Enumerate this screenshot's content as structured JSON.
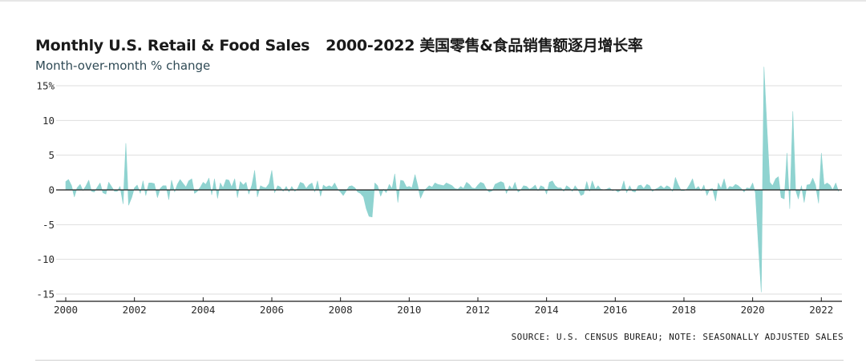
{
  "chart_data": {
    "type": "area",
    "title": "Monthly U.S. Retail & Food Sales",
    "title_cn": "2000-2022 美国零售&食品销售额逐月增长率",
    "subtitle": "Month-over-month % change",
    "source_note": "SOURCE: U.S. CENSUS BUREAU; NOTE: SEASONALLY ADJUSTED SALES",
    "x_range": [
      2000,
      2022.6
    ],
    "ylim": [
      -15,
      16
    ],
    "x_ticks": [
      "2000",
      "2002",
      "2004",
      "2006",
      "2008",
      "2010",
      "2012",
      "2014",
      "2016",
      "2018",
      "2020",
      "2022"
    ],
    "x_tick_values": [
      2000,
      2002,
      2004,
      2006,
      2008,
      2010,
      2012,
      2014,
      2016,
      2018,
      2020,
      2022
    ],
    "y_ticks": [
      {
        "value": 15,
        "label": "15%"
      },
      {
        "value": 10,
        "label": "10"
      },
      {
        "value": 5,
        "label": "5"
      },
      {
        "value": 0,
        "label": "0"
      },
      {
        "value": -5,
        "label": "-5"
      },
      {
        "value": -10,
        "label": "-10"
      },
      {
        "value": -15,
        "label": "-15"
      }
    ],
    "fill_color": "#8fd3d0",
    "grid": true,
    "series": [
      {
        "x": [
          2000.0,
          2000.08,
          2000.17,
          2000.25,
          2000.33,
          2000.42,
          2000.5,
          2000.58,
          2000.67,
          2000.75,
          2000.83,
          2000.92,
          2001.0,
          2001.08,
          2001.17,
          2001.25,
          2001.33,
          2001.42,
          2001.5,
          2001.58,
          2001.67,
          2001.75,
          2001.83,
          2001.92,
          2002.0,
          2002.08,
          2002.17,
          2002.25,
          2002.33,
          2002.42,
          2002.5,
          2002.58,
          2002.67,
          2002.75,
          2002.83,
          2002.92,
          2003.0,
          2003.08,
          2003.17,
          2003.25,
          2003.33,
          2003.42,
          2003.5,
          2003.58,
          2003.67,
          2003.75,
          2003.83,
          2003.92,
          2004.0,
          2004.08,
          2004.17,
          2004.25,
          2004.33,
          2004.42,
          2004.5,
          2004.58,
          2004.67,
          2004.75,
          2004.83,
          2004.92,
          2005.0,
          2005.08,
          2005.17,
          2005.25,
          2005.33,
          2005.42,
          2005.5,
          2005.58,
          2005.67,
          2005.75,
          2005.83,
          2005.92,
          2006.0,
          2006.08,
          2006.17,
          2006.25,
          2006.33,
          2006.42,
          2006.5,
          2006.58,
          2006.67,
          2006.75,
          2006.83,
          2006.92,
          2007.0,
          2007.08,
          2007.17,
          2007.25,
          2007.33,
          2007.42,
          2007.5,
          2007.58,
          2007.67,
          2007.75,
          2007.83,
          2007.92,
          2008.0,
          2008.08,
          2008.17,
          2008.25,
          2008.33,
          2008.42,
          2008.5,
          2008.58,
          2008.67,
          2008.75,
          2008.83,
          2008.92,
          2009.0,
          2009.08,
          2009.17,
          2009.25,
          2009.33,
          2009.42,
          2009.5,
          2009.58,
          2009.67,
          2009.75,
          2009.83,
          2009.92,
          2010.0,
          2010.08,
          2010.17,
          2010.25,
          2010.33,
          2010.42,
          2010.5,
          2010.58,
          2010.67,
          2010.75,
          2010.83,
          2010.92,
          2011.0,
          2011.08,
          2011.17,
          2011.25,
          2011.33,
          2011.42,
          2011.5,
          2011.58,
          2011.67,
          2011.75,
          2011.83,
          2011.92,
          2012.0,
          2012.08,
          2012.17,
          2012.25,
          2012.33,
          2012.42,
          2012.5,
          2012.58,
          2012.67,
          2012.75,
          2012.83,
          2012.92,
          2013.0,
          2013.08,
          2013.17,
          2013.25,
          2013.33,
          2013.42,
          2013.5,
          2013.58,
          2013.67,
          2013.75,
          2013.83,
          2013.92,
          2014.0,
          2014.08,
          2014.17,
          2014.25,
          2014.33,
          2014.42,
          2014.5,
          2014.58,
          2014.67,
          2014.75,
          2014.83,
          2014.92,
          2015.0,
          2015.08,
          2015.17,
          2015.25,
          2015.33,
          2015.42,
          2015.5,
          2015.58,
          2015.67,
          2015.75,
          2015.83,
          2015.92,
          2016.0,
          2016.08,
          2016.17,
          2016.25,
          2016.33,
          2016.42,
          2016.5,
          2016.58,
          2016.67,
          2016.75,
          2016.83,
          2016.92,
          2017.0,
          2017.08,
          2017.17,
          2017.25,
          2017.33,
          2017.42,
          2017.5,
          2017.58,
          2017.67,
          2017.75,
          2017.83,
          2017.92,
          2018.0,
          2018.08,
          2018.17,
          2018.25,
          2018.33,
          2018.42,
          2018.5,
          2018.58,
          2018.67,
          2018.75,
          2018.83,
          2018.92,
          2019.0,
          2019.08,
          2019.17,
          2019.25,
          2019.33,
          2019.42,
          2019.5,
          2019.58,
          2019.67,
          2019.75,
          2019.83,
          2019.92,
          2020.0,
          2020.08,
          2020.17,
          2020.25,
          2020.33,
          2020.42,
          2020.5,
          2020.58,
          2020.67,
          2020.75,
          2020.83,
          2020.92,
          2021.0,
          2021.08,
          2021.17,
          2021.25,
          2021.33,
          2021.42,
          2021.5,
          2021.58,
          2021.67,
          2021.75,
          2021.83,
          2021.92,
          2022.0,
          2022.08,
          2022.17,
          2022.25,
          2022.33,
          2022.42,
          2022.5
        ],
        "y": [
          1.2,
          1.5,
          0.6,
          -1.0,
          0.3,
          0.8,
          -0.1,
          0.5,
          1.4,
          -0.2,
          -0.3,
          0.4,
          1.0,
          -0.4,
          -0.6,
          1.1,
          0.5,
          -0.2,
          -0.2,
          0.5,
          -2.0,
          6.7,
          -2.2,
          -1.1,
          0.3,
          0.7,
          -0.5,
          1.3,
          -0.8,
          1.0,
          1.0,
          0.9,
          -1.1,
          0.2,
          0.6,
          0.6,
          -1.4,
          1.4,
          -0.3,
          0.8,
          1.5,
          0.9,
          0.4,
          1.3,
          1.6,
          -0.5,
          -0.2,
          0.4,
          1.1,
          0.8,
          1.7,
          -0.7,
          1.6,
          -1.2,
          1.0,
          0.3,
          1.5,
          1.4,
          0.4,
          1.6,
          -1.1,
          1.2,
          0.7,
          1.1,
          -0.6,
          0.7,
          2.8,
          -1.0,
          0.6,
          0.4,
          0.3,
          0.9,
          2.8,
          -0.4,
          0.6,
          0.4,
          -0.2,
          0.5,
          -0.3,
          0.5,
          -0.2,
          0.2,
          1.1,
          0.9,
          0.2,
          0.7,
          1.0,
          -0.3,
          1.3,
          -0.9,
          0.7,
          0.4,
          0.6,
          0.4,
          1.0,
          0.1,
          -0.3,
          -0.8,
          -0.1,
          0.5,
          0.6,
          0.3,
          -0.3,
          -0.5,
          -1.0,
          -2.7,
          -3.8,
          -3.9,
          1.0,
          0.6,
          -0.9,
          0.1,
          -0.4,
          0.8,
          0.2,
          2.3,
          -1.8,
          1.4,
          1.3,
          0.4,
          0.5,
          0.3,
          2.2,
          0.6,
          -1.2,
          -0.2,
          0.2,
          0.6,
          0.4,
          1.0,
          0.8,
          0.7,
          0.6,
          1.0,
          0.8,
          0.6,
          0.2,
          0.1,
          0.5,
          0.2,
          1.1,
          0.8,
          0.3,
          0.2,
          0.7,
          1.1,
          0.9,
          0.1,
          -0.3,
          -0.1,
          0.8,
          1.0,
          1.2,
          1.0,
          -0.5,
          0.6,
          0.1,
          1.1,
          -0.3,
          0.0,
          0.6,
          0.5,
          0.1,
          0.3,
          0.7,
          -0.1,
          0.6,
          0.4,
          -0.6,
          1.1,
          1.3,
          0.6,
          0.3,
          0.3,
          -0.2,
          0.6,
          0.3,
          -0.2,
          0.6,
          0.0,
          -0.8,
          -0.6,
          1.2,
          -0.2,
          1.3,
          0.1,
          0.6,
          0.1,
          0.0,
          0.1,
          0.3,
          -0.1,
          0.0,
          -0.3,
          0.0,
          1.3,
          -0.4,
          0.6,
          -0.2,
          -0.3,
          0.6,
          0.7,
          0.2,
          0.8,
          0.6,
          -0.2,
          0.1,
          0.3,
          0.6,
          0.2,
          0.6,
          0.4,
          -0.2,
          1.8,
          0.8,
          -0.1,
          -0.1,
          0.1,
          0.8,
          1.6,
          0.1,
          0.5,
          -0.1,
          0.7,
          -0.8,
          0.1,
          0.2,
          -1.6,
          1.0,
          0.2,
          1.6,
          0.0,
          0.5,
          0.4,
          0.8,
          0.6,
          0.2,
          -0.3,
          0.3,
          0.2,
          1.0,
          -0.4,
          -8.2,
          -14.7,
          17.7,
          8.6,
          1.1,
          0.6,
          1.6,
          1.9,
          -1.1,
          -1.3,
          5.3,
          -2.7,
          11.3,
          0.0,
          -1.3,
          0.6,
          -1.8,
          0.7,
          0.8,
          1.7,
          0.7,
          -1.9,
          5.3,
          0.7,
          1.0,
          0.7,
          0.0,
          1.0,
          -0.2
        ]
      }
    ]
  }
}
